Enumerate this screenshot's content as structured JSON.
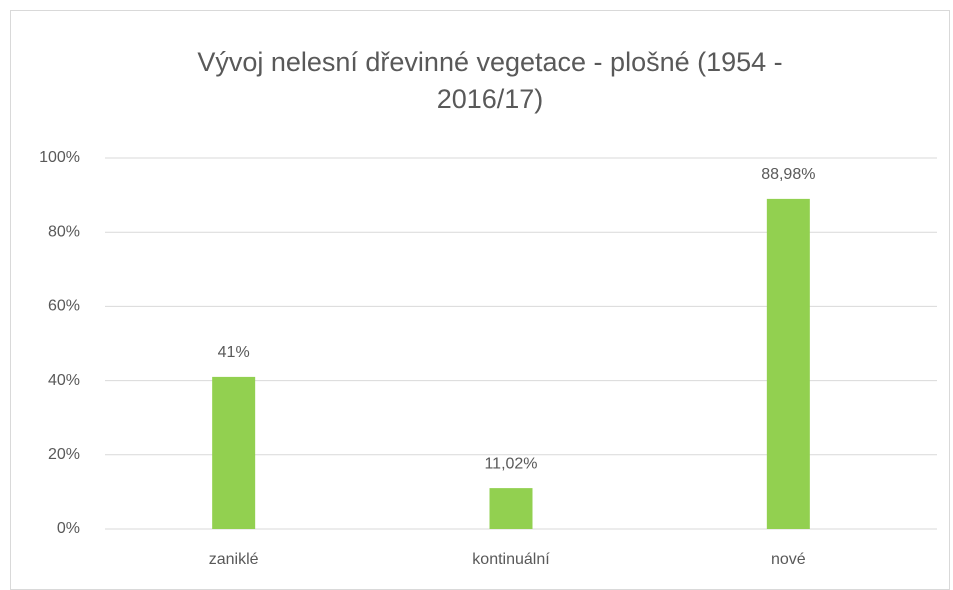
{
  "chart_data": {
    "type": "bar",
    "title": "Vývoj nelesní dřevinné vegetace - plošné (1954 - 2016/17)",
    "categories": [
      "zaniklé",
      "kontinuální",
      "nové"
    ],
    "values": [
      41,
      11.02,
      88.98
    ],
    "value_labels": [
      "41%",
      "11,02%",
      "88,98%"
    ],
    "color": "#92d050",
    "ylim": [
      0,
      100
    ],
    "yticks": [
      {
        "value": 0,
        "label": "0%"
      },
      {
        "value": 20,
        "label": "20%"
      },
      {
        "value": 40,
        "label": "40%"
      },
      {
        "value": 60,
        "label": "60%"
      },
      {
        "value": 80,
        "label": "80%"
      },
      {
        "value": 100,
        "label": "100%"
      }
    ],
    "grid": true
  }
}
